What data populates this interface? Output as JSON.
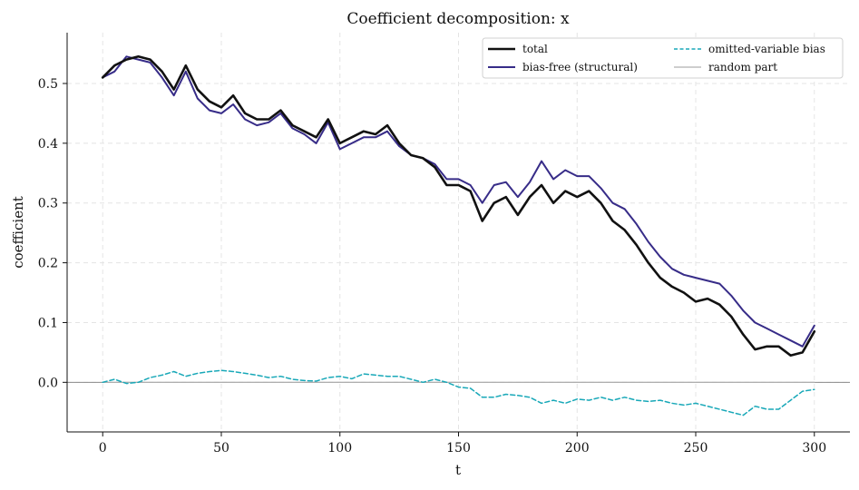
{
  "chart_data": {
    "type": "line",
    "title": "Coefficient decomposition: x",
    "xlabel": "t",
    "ylabel": "coefficient",
    "xlim": [
      -15,
      315
    ],
    "ylim": [
      -0.083,
      0.585
    ],
    "xticks": [
      0,
      50,
      100,
      150,
      200,
      250,
      300
    ],
    "yticks": [
      0.0,
      0.1,
      0.2,
      0.3,
      0.4,
      0.5
    ],
    "ytick_labels": [
      "0.0",
      "0.1",
      "0.2",
      "0.3",
      "0.4",
      "0.5"
    ],
    "grid": true,
    "legend_position": "top-right",
    "reference_line": 0.0,
    "series": [
      {
        "name": "total",
        "color": "#111111",
        "style": "solid",
        "x": [
          0,
          5,
          10,
          15,
          20,
          25,
          30,
          35,
          40,
          45,
          50,
          55,
          60,
          65,
          70,
          75,
          80,
          85,
          90,
          95,
          100,
          105,
          110,
          115,
          120,
          125,
          130,
          135,
          140,
          145,
          150,
          155,
          160,
          165,
          170,
          175,
          180,
          185,
          190,
          195,
          200,
          205,
          210,
          215,
          220,
          225,
          230,
          235,
          240,
          245,
          250,
          255,
          260,
          265,
          270,
          275,
          280,
          285,
          290,
          295,
          300
        ],
        "values": [
          0.51,
          0.53,
          0.54,
          0.545,
          0.54,
          0.52,
          0.49,
          0.53,
          0.49,
          0.47,
          0.46,
          0.48,
          0.45,
          0.44,
          0.44,
          0.455,
          0.43,
          0.42,
          0.41,
          0.44,
          0.4,
          0.41,
          0.42,
          0.415,
          0.43,
          0.4,
          0.38,
          0.375,
          0.36,
          0.33,
          0.33,
          0.32,
          0.27,
          0.3,
          0.31,
          0.28,
          0.31,
          0.33,
          0.3,
          0.32,
          0.31,
          0.32,
          0.3,
          0.27,
          0.255,
          0.23,
          0.2,
          0.175,
          0.16,
          0.15,
          0.135,
          0.14,
          0.13,
          0.11,
          0.08,
          0.055,
          0.06,
          0.06,
          0.045,
          0.05,
          0.085
        ]
      },
      {
        "name": "bias-free (structural)",
        "color": "#372c88",
        "style": "solid",
        "x": [
          0,
          5,
          10,
          15,
          20,
          25,
          30,
          35,
          40,
          45,
          50,
          55,
          60,
          65,
          70,
          75,
          80,
          85,
          90,
          95,
          100,
          105,
          110,
          115,
          120,
          125,
          130,
          135,
          140,
          145,
          150,
          155,
          160,
          165,
          170,
          175,
          180,
          185,
          190,
          195,
          200,
          205,
          210,
          215,
          220,
          225,
          230,
          235,
          240,
          245,
          250,
          255,
          260,
          265,
          270,
          275,
          280,
          285,
          290,
          295,
          300
        ],
        "values": [
          0.51,
          0.52,
          0.545,
          0.54,
          0.535,
          0.51,
          0.48,
          0.52,
          0.475,
          0.455,
          0.45,
          0.465,
          0.44,
          0.43,
          0.435,
          0.45,
          0.425,
          0.415,
          0.4,
          0.435,
          0.39,
          0.4,
          0.41,
          0.41,
          0.42,
          0.395,
          0.38,
          0.375,
          0.365,
          0.34,
          0.34,
          0.33,
          0.3,
          0.33,
          0.335,
          0.31,
          0.335,
          0.37,
          0.34,
          0.355,
          0.345,
          0.345,
          0.325,
          0.3,
          0.29,
          0.265,
          0.235,
          0.21,
          0.19,
          0.18,
          0.175,
          0.17,
          0.165,
          0.145,
          0.12,
          0.1,
          0.09,
          0.08,
          0.07,
          0.06,
          0.095
        ]
      },
      {
        "name": "omitted-variable bias",
        "color": "#18a8b8",
        "style": "dashed",
        "x": [
          0,
          5,
          10,
          15,
          20,
          25,
          30,
          35,
          40,
          45,
          50,
          55,
          60,
          65,
          70,
          75,
          80,
          85,
          90,
          95,
          100,
          105,
          110,
          115,
          120,
          125,
          130,
          135,
          140,
          145,
          150,
          155,
          160,
          165,
          170,
          175,
          180,
          185,
          190,
          195,
          200,
          205,
          210,
          215,
          220,
          225,
          230,
          235,
          240,
          245,
          250,
          255,
          260,
          265,
          270,
          275,
          280,
          285,
          290,
          295,
          300
        ],
        "values": [
          0.0,
          0.005,
          -0.002,
          0.0,
          0.008,
          0.012,
          0.018,
          0.01,
          0.015,
          0.018,
          0.02,
          0.018,
          0.015,
          0.012,
          0.008,
          0.01,
          0.005,
          0.003,
          0.002,
          0.008,
          0.01,
          0.006,
          0.014,
          0.012,
          0.01,
          0.01,
          0.005,
          0.0,
          0.005,
          0.0,
          -0.008,
          -0.01,
          -0.025,
          -0.025,
          -0.02,
          -0.022,
          -0.025,
          -0.035,
          -0.03,
          -0.035,
          -0.028,
          -0.03,
          -0.025,
          -0.03,
          -0.025,
          -0.03,
          -0.032,
          -0.03,
          -0.035,
          -0.038,
          -0.035,
          -0.04,
          -0.045,
          -0.05,
          -0.055,
          -0.04,
          -0.045,
          -0.045,
          -0.03,
          -0.015,
          -0.012
        ]
      },
      {
        "name": "random part",
        "color": "#b0b0b0",
        "style": "solid",
        "x": [
          0,
          300
        ],
        "values": [
          0.0,
          0.0
        ]
      }
    ]
  }
}
